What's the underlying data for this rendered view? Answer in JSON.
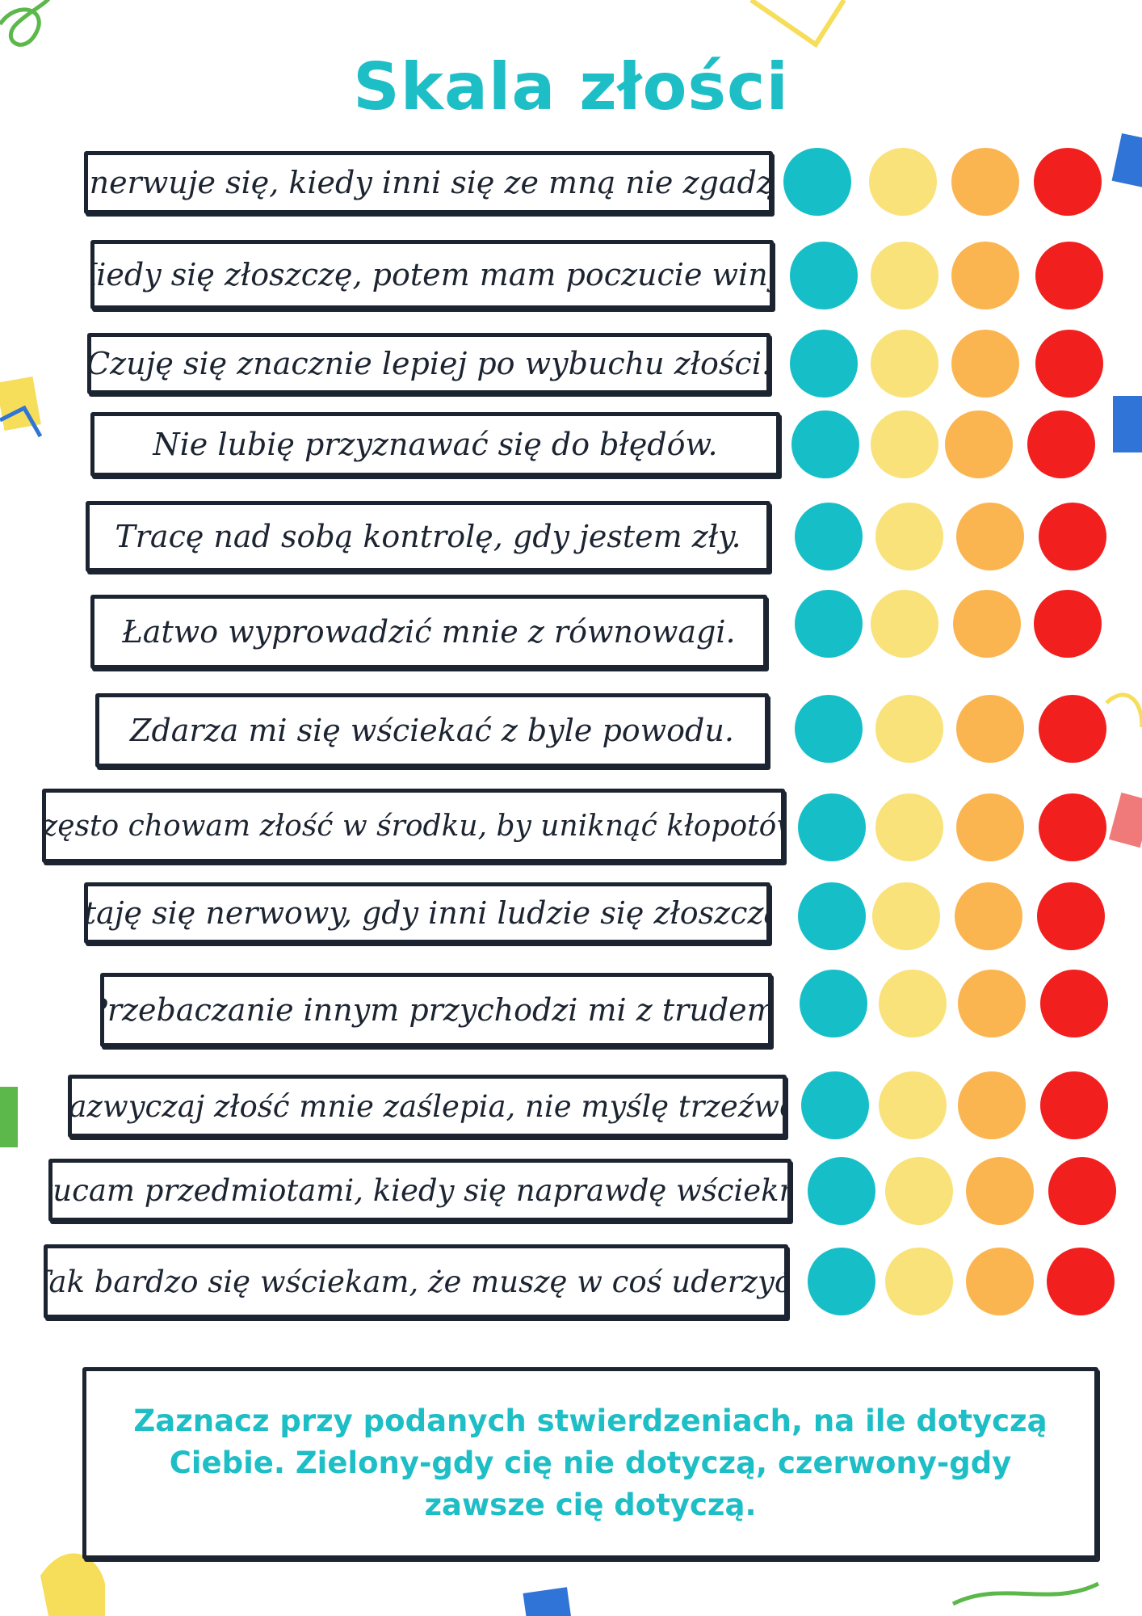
{
  "title": "Skala złości",
  "scale_colors": {
    "teal": "#16bfc8",
    "yellow": "#f9e27a",
    "orange": "#fbb550",
    "red": "#f21f1f"
  },
  "statements": [
    "Denerwuje się, kiedy inni się ze mną nie zgadzją.",
    "Kiedy się złoszczę,  potem mam  poczucie winy.",
    "Czuję się znacznie lepiej po wybuchu złości.",
    "Nie lubię przyznawać się do błędów.",
    "Tracę nad sobą kontrolę, gdy jestem zły.",
    "Łatwo wyprowadzić mnie z równowagi.",
    "Zdarza mi się wściekać z byle powodu.",
    "Często chowam złość w środku, by uniknąć kłopotów.",
    "Staję się nerwowy, gdy inni ludzie się złoszczą.",
    "Przebaczanie innym przychodzi mi z trudem.",
    "Zazwyczaj złość mnie zaślepia, nie  myślę trzeźwo.",
    "Rzucam przedmiotami, kiedy się naprawdę wściekne.",
    "Tak bardzo się wściekam, że muszę w coś uderzyć."
  ],
  "instructions": "Zaznacz przy podanych stwierdzeniach, na ile dotyczą Ciebie. Zielony-gdy cię nie dotyczą, czerwony-gdy  zawsze cię dotyczą."
}
